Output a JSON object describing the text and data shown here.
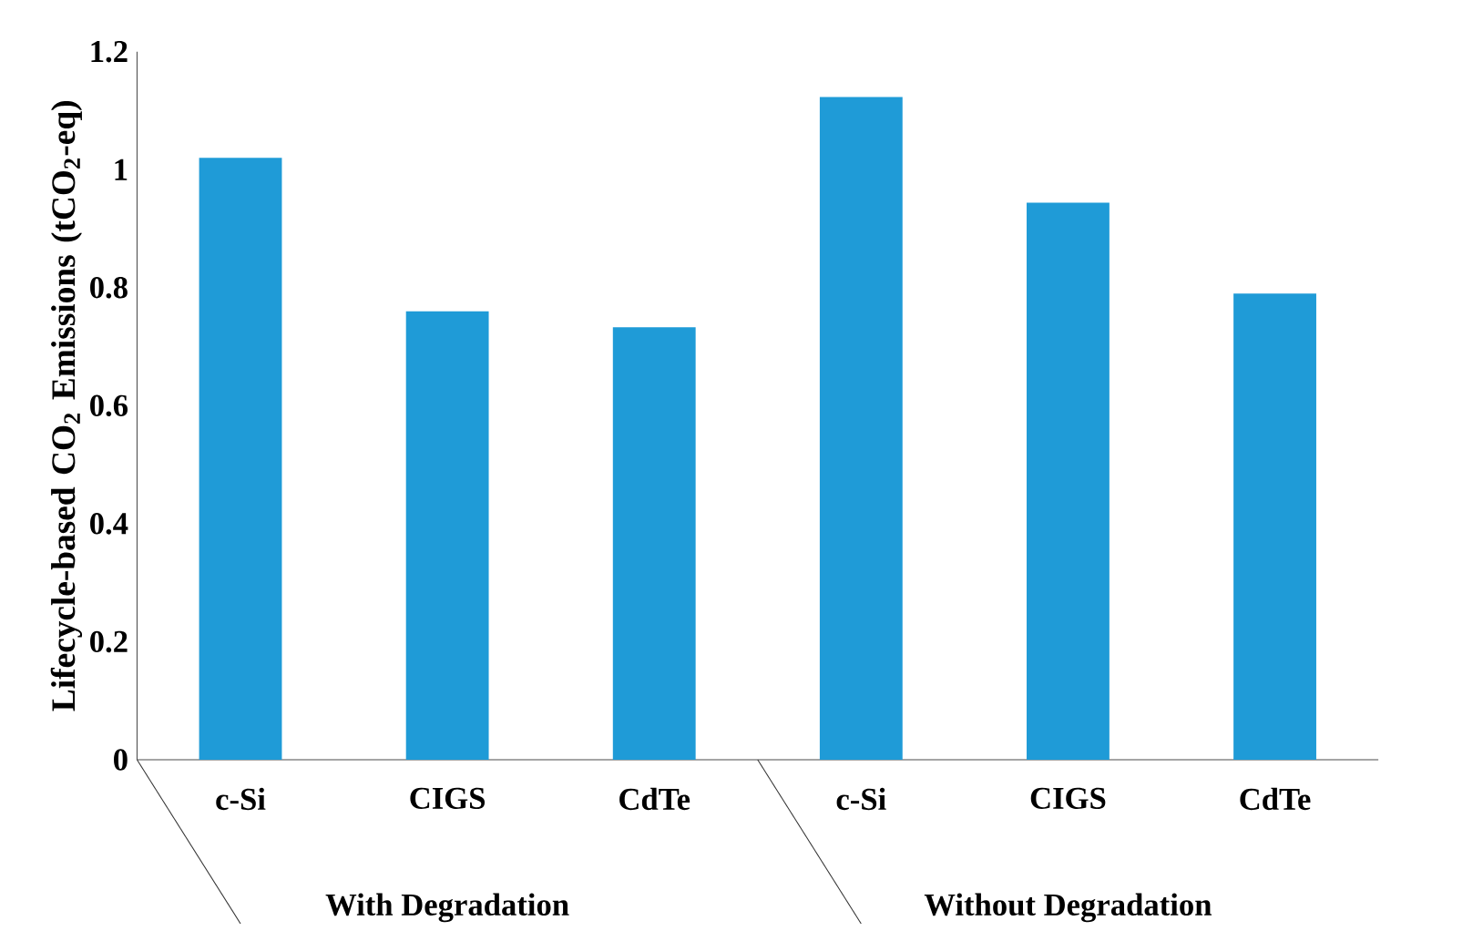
{
  "chart_data": {
    "type": "bar",
    "ylabel": "Lifecycle-based CO$_{2}$ Emissions (tCO$_{2}$-eq)",
    "categories": [
      "c-Si",
      "CIGS",
      "CdTe",
      "c-Si",
      "CIGS",
      "CdTe"
    ],
    "values": [
      1.02,
      0.76,
      0.733,
      1.123,
      0.944,
      0.79
    ],
    "color": "#1f9bd7",
    "ylim": [
      0,
      1.2
    ],
    "yticks": [
      0,
      0.2,
      0.4,
      0.6,
      0.8,
      1,
      1.2
    ],
    "annotations": [
      "With Degradation",
      "Without Degradation"
    ],
    "grid": false
  }
}
